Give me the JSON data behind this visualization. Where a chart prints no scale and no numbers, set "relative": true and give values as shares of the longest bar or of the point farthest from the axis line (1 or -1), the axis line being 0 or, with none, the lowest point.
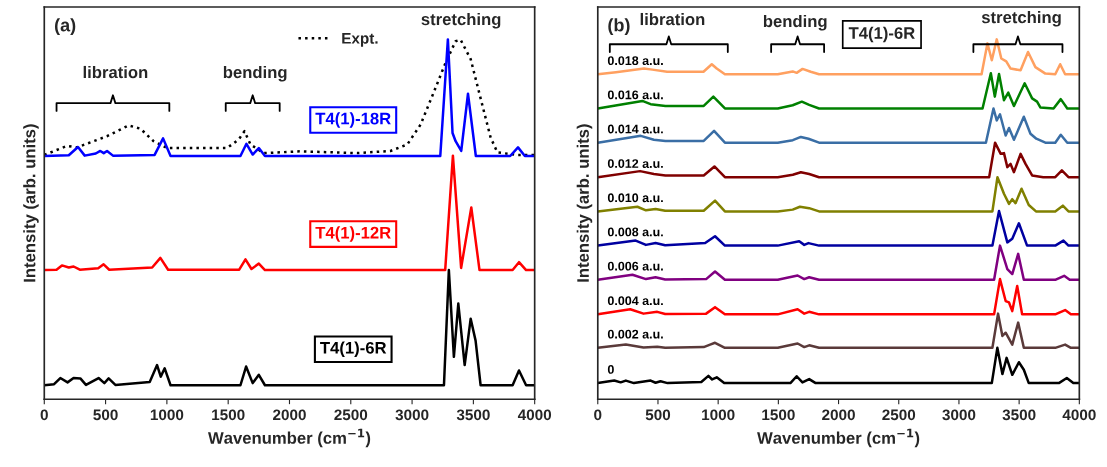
{
  "chart_data": [
    {
      "type": "line",
      "relative": true,
      "xlabel": "Wavenumber (cm$^{−1}$)",
      "ylabel": "Intensity (arb. units)",
      "xlim": [
        0,
        4000
      ],
      "xticks": [
        0,
        500,
        1000,
        1500,
        2000,
        2500,
        3000,
        3500,
        4000
      ],
      "legend": "top center",
      "grid": false,
      "annotations": [
        "(a)",
        "libration",
        "bending",
        "stretching"
      ],
      "series": [
        {
          "name": "Expt.",
          "color": "#000000",
          "line_style": "dotted",
          "x": [
            0,
            185,
            267,
            512,
            688,
            784,
            892,
            1002,
            1491,
            1586,
            1633,
            1682,
            1790,
            2090,
            2552,
            2824,
            2961,
            3069,
            3178,
            3273,
            3355,
            3396,
            3478,
            3559,
            3641,
            3696,
            3859,
            4000
          ],
          "values": [
            0.679,
            0.704,
            0.7,
            0.731,
            0.761,
            0.752,
            0.717,
            0.698,
            0.698,
            0.722,
            0.745,
            0.708,
            0.684,
            0.689,
            0.684,
            0.69,
            0.708,
            0.763,
            0.854,
            0.935,
            0.995,
            0.999,
            0.945,
            0.836,
            0.727,
            0.686,
            0.679,
            0.679
          ]
        },
        {
          "name": "T4(1)-18R",
          "color": "#0000ff",
          "line_style": "solid",
          "x": [
            0,
            200,
            275,
            330,
            420,
            457,
            485,
            512,
            560,
            900,
            969,
            1030,
            1600,
            1649,
            1700,
            1750,
            1800,
            3230,
            3292,
            3330,
            3355,
            3401,
            3456,
            3520,
            3800,
            3864,
            3920,
            4000
          ],
          "values": [
            0.676,
            0.678,
            0.701,
            0.677,
            0.683,
            0.69,
            0.684,
            0.69,
            0.677,
            0.679,
            0.725,
            0.676,
            0.676,
            0.71,
            0.68,
            0.698,
            0.676,
            0.676,
            1.0,
            0.74,
            0.717,
            0.69,
            0.849,
            0.676,
            0.676,
            0.7,
            0.676,
            0.676
          ]
        },
        {
          "name": "T4(1)-12R",
          "color": "#ff0000",
          "line_style": "solid",
          "x": [
            0,
            100,
            144,
            200,
            239,
            290,
            440,
            484,
            530,
            880,
            947,
            1010,
            1590,
            1641,
            1690,
            1750,
            1800,
            3270,
            3333,
            3400,
            3483,
            3550,
            3820,
            3872,
            3930,
            4000
          ],
          "values": [
            0.359,
            0.36,
            0.372,
            0.366,
            0.369,
            0.36,
            0.364,
            0.375,
            0.36,
            0.366,
            0.393,
            0.36,
            0.36,
            0.389,
            0.362,
            0.377,
            0.359,
            0.359,
            0.677,
            0.365,
            0.533,
            0.359,
            0.359,
            0.381,
            0.359,
            0.359
          ]
        },
        {
          "name": "T4(1)-6R",
          "color": "#000000",
          "line_style": "solid",
          "x": [
            0,
            80,
            131,
            190,
            239,
            294,
            340,
            443,
            490,
            525,
            580,
            860,
            920,
            950,
            982,
            1030,
            1600,
            1646,
            1700,
            1750,
            1800,
            3260,
            3300,
            3341,
            3377,
            3429,
            3478,
            3518,
            3559,
            3820,
            3872,
            3930,
            4000
          ],
          "values": [
            0.039,
            0.042,
            0.059,
            0.047,
            0.059,
            0.058,
            0.04,
            0.059,
            0.045,
            0.058,
            0.04,
            0.048,
            0.095,
            0.063,
            0.086,
            0.039,
            0.039,
            0.091,
            0.045,
            0.068,
            0.039,
            0.039,
            0.359,
            0.118,
            0.266,
            0.095,
            0.224,
            0.163,
            0.039,
            0.039,
            0.08,
            0.039,
            0.039
          ]
        }
      ]
    },
    {
      "type": "line",
      "relative": true,
      "xlabel": "Wavenumber (cm$^{−1}$)",
      "ylabel": "Intensity (arb. units)",
      "xlim": [
        0,
        4000
      ],
      "xticks": [
        0,
        500,
        1000,
        1500,
        2000,
        2500,
        3000,
        3500,
        4000
      ],
      "grid": false,
      "annotations": [
        "(b)",
        "T4(1)-6R",
        "libration",
        "bending",
        "stretching"
      ],
      "series": [
        {
          "name": "0.018 a.u.",
          "color": "#ffa060",
          "x": [
            0,
            151,
            384,
            453,
            576,
            878,
            947,
            988,
            1056,
            1495,
            1619,
            1652,
            1701,
            1769,
            1838,
            3188,
            3237,
            3273,
            3314,
            3352,
            3393,
            3429,
            3512,
            3574,
            3635,
            3718,
            3800,
            3841,
            3882,
            4000
          ],
          "values": [
            0.903,
            0.909,
            0.919,
            0.916,
            0.91,
            0.91,
            0.931,
            0.919,
            0.903,
            0.903,
            0.911,
            0.907,
            0.918,
            0.91,
            0.903,
            0.903,
            0.989,
            0.942,
            1.0,
            0.947,
            0.939,
            0.919,
            0.914,
            0.965,
            0.923,
            0.905,
            0.903,
            0.931,
            0.903,
            0.903
          ]
        },
        {
          "name": "0.016 a.u.",
          "color": "#008000",
          "x": [
            0,
            370,
            439,
            562,
            880,
            960,
            1056,
            1495,
            1619,
            1695,
            1756,
            1838,
            3196,
            3265,
            3298,
            3333,
            3374,
            3410,
            3457,
            3546,
            3608,
            3649,
            3676,
            3786,
            3846,
            3900,
            4000
          ],
          "values": [
            0.808,
            0.829,
            0.82,
            0.815,
            0.815,
            0.841,
            0.808,
            0.808,
            0.817,
            0.827,
            0.818,
            0.808,
            0.808,
            0.906,
            0.841,
            0.904,
            0.831,
            0.852,
            0.815,
            0.878,
            0.836,
            0.827,
            0.811,
            0.808,
            0.834,
            0.808,
            0.808
          ]
        },
        {
          "name": "0.014 a.u.",
          "color": "#3a6ea5",
          "x": [
            0,
            357,
            466,
            562,
            880,
            966,
            1056,
            1495,
            1620,
            1687,
            1750,
            1838,
            3224,
            3287,
            3314,
            3341,
            3388,
            3416,
            3457,
            3539,
            3594,
            3643,
            3718,
            3800,
            3846,
            3900,
            4000
          ],
          "values": [
            0.713,
            0.732,
            0.721,
            0.718,
            0.718,
            0.746,
            0.713,
            0.713,
            0.72,
            0.729,
            0.724,
            0.713,
            0.713,
            0.808,
            0.775,
            0.792,
            0.733,
            0.754,
            0.721,
            0.785,
            0.738,
            0.724,
            0.713,
            0.713,
            0.735,
            0.713,
            0.713
          ]
        },
        {
          "name": "0.012 a.u.",
          "color": "#800000",
          "x": [
            0,
            351,
            466,
            562,
            880,
            969,
            1056,
            1495,
            1620,
            1687,
            1756,
            1838,
            3251,
            3300,
            3347,
            3374,
            3402,
            3429,
            3457,
            3512,
            3553,
            3608,
            3700,
            3800,
            3855,
            3910,
            4000
          ],
          "values": [
            0.617,
            0.634,
            0.626,
            0.622,
            0.622,
            0.647,
            0.617,
            0.617,
            0.624,
            0.631,
            0.626,
            0.617,
            0.617,
            0.713,
            0.682,
            0.684,
            0.645,
            0.654,
            0.631,
            0.682,
            0.654,
            0.622,
            0.617,
            0.617,
            0.636,
            0.617,
            0.617
          ]
        },
        {
          "name": "0.010 a.u.",
          "color": "#808000",
          "x": [
            0,
            329,
            400,
            480,
            560,
            880,
            974,
            1056,
            1495,
            1619,
            1679,
            1756,
            1838,
            3278,
            3320,
            3374,
            3416,
            3443,
            3470,
            3520,
            3580,
            3640,
            3800,
            3863,
            3910,
            4000
          ],
          "values": [
            0.522,
            0.535,
            0.525,
            0.529,
            0.524,
            0.524,
            0.552,
            0.522,
            0.522,
            0.527,
            0.535,
            0.531,
            0.522,
            0.522,
            0.617,
            0.571,
            0.543,
            0.556,
            0.545,
            0.585,
            0.54,
            0.522,
            0.522,
            0.538,
            0.522,
            0.522
          ]
        },
        {
          "name": "0.008 a.u.",
          "color": "#0000a0",
          "x": [
            0,
            315,
            400,
            480,
            560,
            892,
            974,
            1056,
            1495,
            1673,
            1715,
            1750,
            1838,
            3278,
            3333,
            3402,
            3443,
            3498,
            3566,
            3800,
            3868,
            3910,
            4000
          ],
          "values": [
            0.427,
            0.441,
            0.429,
            0.434,
            0.428,
            0.434,
            0.453,
            0.427,
            0.427,
            0.439,
            0.429,
            0.434,
            0.427,
            0.427,
            0.523,
            0.436,
            0.446,
            0.489,
            0.427,
            0.427,
            0.441,
            0.427,
            0.427
          ]
        },
        {
          "name": "0.006 a.u.",
          "color": "#800080",
          "x": [
            0,
            288,
            400,
            480,
            560,
            900,
            974,
            1056,
            1495,
            1660,
            1715,
            1756,
            1838,
            3292,
            3341,
            3402,
            3443,
            3492,
            3539,
            3800,
            3874,
            3920,
            4000
          ],
          "values": [
            0.332,
            0.346,
            0.334,
            0.339,
            0.333,
            0.334,
            0.355,
            0.332,
            0.332,
            0.344,
            0.334,
            0.339,
            0.332,
            0.332,
            0.427,
            0.362,
            0.348,
            0.404,
            0.332,
            0.332,
            0.343,
            0.332,
            0.332
          ]
        },
        {
          "name": "0.004 a.u.",
          "color": "#ff0000",
          "x": [
            0,
            269,
            380,
            494,
            560,
            900,
            974,
            1056,
            1495,
            1660,
            1715,
            1756,
            1838,
            3292,
            3341,
            3388,
            3416,
            3443,
            3484,
            3525,
            3800,
            3882,
            3930,
            4000
          ],
          "values": [
            0.236,
            0.25,
            0.238,
            0.243,
            0.237,
            0.238,
            0.256,
            0.236,
            0.236,
            0.25,
            0.238,
            0.243,
            0.236,
            0.236,
            0.334,
            0.273,
            0.269,
            0.245,
            0.315,
            0.236,
            0.236,
            0.248,
            0.236,
            0.236
          ]
        },
        {
          "name": "0.002 a.u.",
          "color": "#5a3a3a",
          "x": [
            0,
            233,
            380,
            494,
            560,
            880,
            933,
            974,
            1056,
            1495,
            1660,
            1715,
            1756,
            1838,
            3278,
            3325,
            3361,
            3388,
            3443,
            3492,
            3539,
            3800,
            3882,
            3930,
            4000
          ],
          "values": [
            0.143,
            0.152,
            0.144,
            0.146,
            0.143,
            0.145,
            0.152,
            0.157,
            0.143,
            0.143,
            0.155,
            0.145,
            0.15,
            0.143,
            0.143,
            0.238,
            0.176,
            0.185,
            0.152,
            0.213,
            0.143,
            0.143,
            0.152,
            0.143,
            0.143
          ]
        },
        {
          "name": "0",
          "color": "#000000",
          "x": [
            0,
            137,
            190,
            233,
            300,
            439,
            480,
            521,
            580,
            860,
            919,
            950,
            988,
            1050,
            1600,
            1652,
            1700,
            1756,
            1810,
            3273,
            3319,
            3361,
            3396,
            3443,
            3498,
            3539,
            3580,
            3830,
            3896,
            3950,
            4000
          ],
          "values": [
            0.045,
            0.052,
            0.047,
            0.052,
            0.045,
            0.052,
            0.046,
            0.05,
            0.045,
            0.048,
            0.065,
            0.055,
            0.061,
            0.045,
            0.045,
            0.064,
            0.047,
            0.056,
            0.045,
            0.045,
            0.143,
            0.07,
            0.115,
            0.068,
            0.103,
            0.082,
            0.045,
            0.045,
            0.059,
            0.045,
            0.045
          ]
        }
      ]
    }
  ]
}
